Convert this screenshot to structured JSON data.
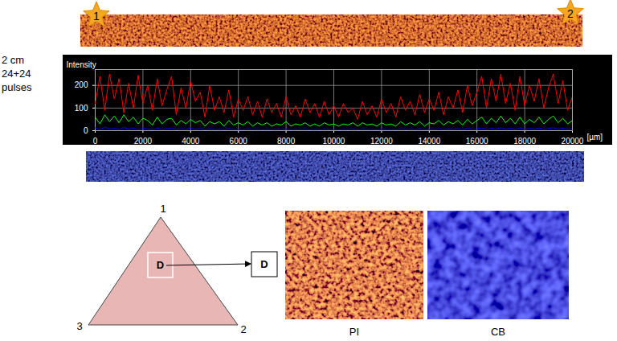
{
  "chart_data": {
    "type": "line",
    "y_label": "Intensity",
    "x_label": "[µm]",
    "x": [
      0,
      200,
      400,
      600,
      800,
      1000,
      1200,
      1400,
      1600,
      1800,
      2000,
      2200,
      2400,
      2600,
      2800,
      3000,
      3200,
      3400,
      3600,
      3800,
      4000,
      4200,
      4400,
      4600,
      4800,
      5000,
      5200,
      5400,
      5600,
      5800,
      6000,
      6200,
      6400,
      6600,
      6800,
      7000,
      7200,
      7400,
      7600,
      7800,
      8000,
      8200,
      8400,
      8600,
      8800,
      9000,
      9200,
      9400,
      9600,
      9800,
      10000,
      10200,
      10400,
      10600,
      10800,
      11000,
      11200,
      11400,
      11600,
      11800,
      12000,
      12200,
      12400,
      12600,
      12800,
      13000,
      13200,
      13400,
      13600,
      13800,
      14000,
      14200,
      14400,
      14600,
      14800,
      15000,
      15200,
      15400,
      15600,
      15800,
      16000,
      16200,
      16400,
      16600,
      16800,
      17000,
      17200,
      17400,
      17600,
      17800,
      18000,
      18200,
      18400,
      18600,
      18800,
      19000,
      19200,
      19400,
      19600,
      19800,
      20000
    ],
    "series": [
      {
        "color": "#ff0000",
        "values": [
          120,
          240,
          90,
          250,
          140,
          230,
          80,
          210,
          100,
          245,
          120,
          200,
          90,
          230,
          110,
          180,
          240,
          70,
          190,
          100,
          220,
          130,
          170,
          60,
          200,
          90,
          150,
          80,
          180,
          60,
          140,
          90,
          150,
          70,
          130,
          60,
          140,
          80,
          120,
          60,
          150,
          70,
          110,
          60,
          140,
          80,
          120,
          60,
          130,
          70,
          110,
          60,
          120,
          80,
          100,
          50,
          130,
          70,
          110,
          60,
          140,
          80,
          120,
          60,
          150,
          90,
          130,
          70,
          160,
          80,
          140,
          90,
          170,
          70,
          150,
          100,
          180,
          80,
          200,
          110,
          170,
          240,
          100,
          230,
          130,
          250,
          120,
          210,
          90,
          240,
          110,
          200,
          130,
          230,
          100,
          190,
          250,
          120,
          220,
          90,
          150
        ]
      },
      {
        "color": "#00ff00",
        "values": [
          60,
          30,
          70,
          40,
          65,
          35,
          70,
          40,
          60,
          30,
          55,
          45,
          25,
          60,
          30,
          50,
          55,
          25,
          45,
          30,
          50,
          35,
          45,
          20,
          40,
          30,
          40,
          20,
          45,
          25,
          35,
          25,
          40,
          20,
          35,
          25,
          35,
          20,
          30,
          25,
          40,
          20,
          30,
          25,
          35,
          20,
          30,
          20,
          35,
          25,
          30,
          20,
          30,
          25,
          35,
          20,
          35,
          25,
          30,
          20,
          35,
          25,
          30,
          20,
          40,
          25,
          35,
          25,
          40,
          20,
          35,
          30,
          45,
          25,
          40,
          30,
          45,
          25,
          50,
          30,
          45,
          60,
          30,
          55,
          35,
          65,
          35,
          55,
          30,
          60,
          30,
          50,
          35,
          60,
          30,
          50,
          65,
          35,
          55,
          30,
          45
        ]
      },
      {
        "color": "#0000ff",
        "values": [
          12,
          5,
          15,
          8,
          10,
          6,
          14,
          7,
          12,
          5,
          10,
          8,
          4,
          11,
          6,
          9,
          10,
          5,
          8,
          6,
          12,
          6,
          9,
          4,
          8,
          5,
          7,
          4,
          9,
          5,
          6,
          4,
          8,
          5,
          7,
          4,
          6,
          4,
          7,
          5,
          8,
          4,
          6,
          5,
          7,
          4,
          6,
          4,
          7,
          5,
          6,
          4,
          6,
          5,
          7,
          4,
          7,
          5,
          6,
          4,
          7,
          5,
          6,
          4,
          8,
          5,
          7,
          5,
          8,
          4,
          7,
          6,
          9,
          5,
          8,
          6,
          9,
          5,
          10,
          6,
          9,
          12,
          6,
          11,
          7,
          13,
          7,
          11,
          6,
          12,
          6,
          10,
          7,
          12,
          6,
          10,
          13,
          7,
          11,
          6,
          9
        ]
      }
    ],
    "xlim": [
      0,
      20000
    ],
    "xticks": [
      0,
      2000,
      4000,
      6000,
      8000,
      10000,
      12000,
      14000,
      16000,
      18000,
      20000
    ],
    "ylim": [
      0,
      270
    ],
    "yticks": [
      0,
      100,
      200
    ],
    "grid": true
  },
  "figure": {
    "side_label": [
      "2 cm",
      "24+24",
      "pulses"
    ],
    "strip_markers": [
      "1",
      "2"
    ],
    "triangle": {
      "vertices": [
        "1",
        "2",
        "3"
      ],
      "region": "D"
    },
    "zoom_label": "D",
    "images": [
      "PI",
      "CB"
    ]
  }
}
